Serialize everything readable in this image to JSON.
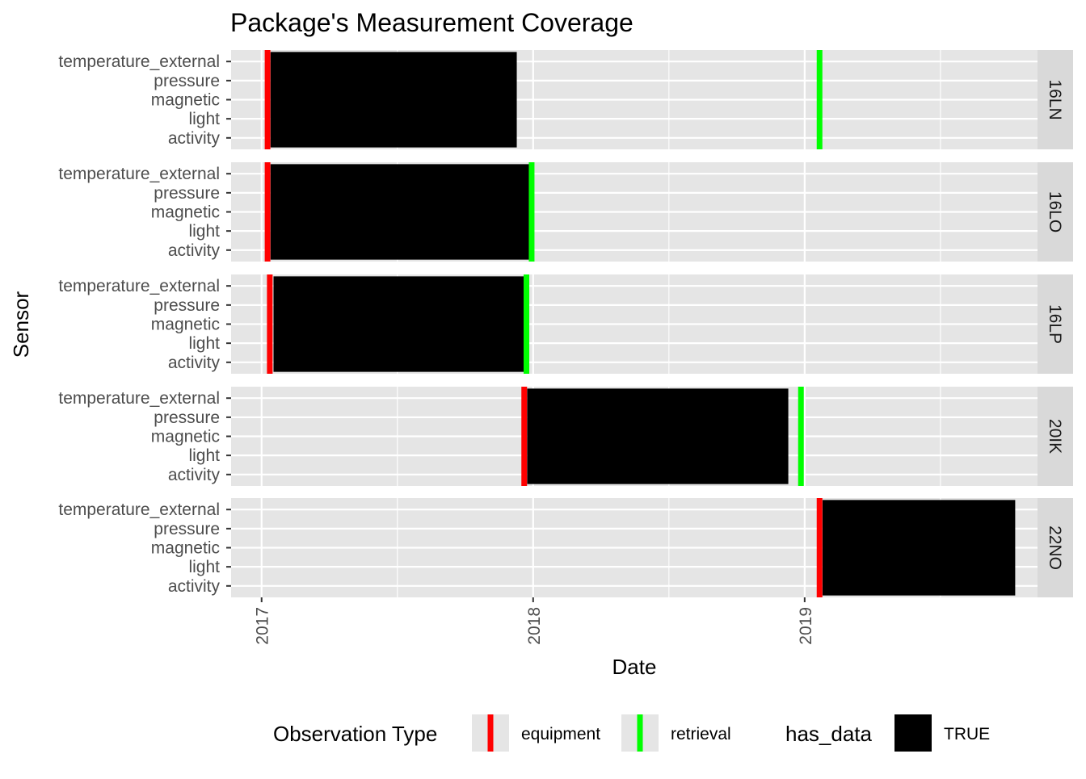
{
  "chart_data": {
    "type": "bar",
    "title": "Package's Measurement Coverage",
    "xlabel": "Date",
    "ylabel": "Sensor",
    "xlim": [
      "2016-11-21",
      "2019-11-10"
    ],
    "x_breaks": [
      "2017-01-01",
      "2018-01-01",
      "2019-01-01"
    ],
    "x_tick_labels": [
      "2017",
      "2018",
      "2019"
    ],
    "categories": [
      "temperature_external",
      "pressure",
      "magnetic",
      "light",
      "activity"
    ],
    "grid": true,
    "legend_position": "bottom",
    "colors": {
      "panel_bg": "#e5e5e5",
      "grid": "#ffffff",
      "strip_bg": "#d9d9d9",
      "has_data": "#000000",
      "equipment": "#ff0000",
      "retrieval": "#00ff00"
    },
    "panels": [
      {
        "label": "16LN",
        "data_start": "2017-01-13",
        "data_end": "2017-12-10",
        "equipment": "2017-01-09",
        "retrieval": "2019-01-21"
      },
      {
        "label": "16LO",
        "data_start": "2017-01-13",
        "data_end": "2017-12-27",
        "equipment": "2017-01-09",
        "retrieval": "2017-12-30"
      },
      {
        "label": "16LP",
        "data_start": "2017-01-17",
        "data_end": "2017-12-20",
        "equipment": "2017-01-12",
        "retrieval": "2017-12-23"
      },
      {
        "label": "20IK",
        "data_start": "2017-12-24",
        "data_end": "2018-12-10",
        "equipment": "2017-12-20",
        "retrieval": "2018-12-27"
      },
      {
        "label": "22NO",
        "data_start": "2019-01-25",
        "data_end": "2019-10-11",
        "equipment": "2019-01-21",
        "retrieval": null
      }
    ],
    "legend": {
      "observation_type_title": "Observation Type",
      "observation_types": [
        {
          "label": "equipment",
          "color": "#ff0000"
        },
        {
          "label": "retrieval",
          "color": "#00ff00"
        }
      ],
      "has_data_title": "has_data",
      "has_data_entries": [
        {
          "label": "TRUE",
          "color": "#000000"
        }
      ]
    }
  }
}
